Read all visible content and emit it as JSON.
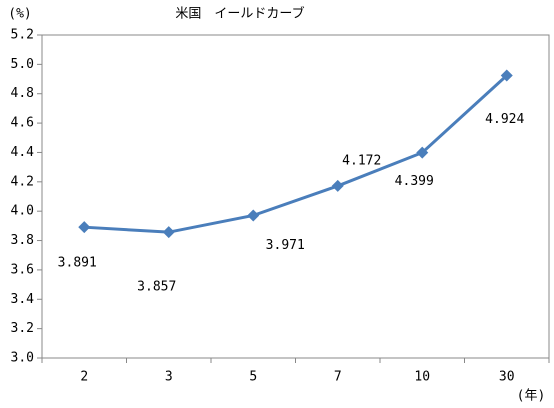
{
  "chart_data": {
    "type": "line",
    "title": "米国　イールドカーブ",
    "y_unit": "(%)",
    "x_unit": "(年)",
    "categories": [
      "2",
      "3",
      "5",
      "7",
      "10",
      "30"
    ],
    "series": [
      {
        "name": "米国",
        "color": "#4a7ebb",
        "values": [
          3.891,
          3.857,
          3.971,
          4.172,
          4.399,
          4.924
        ]
      }
    ],
    "ylim": [
      3.0,
      5.2
    ],
    "yticks": [
      {
        "value": 3.0,
        "label": "3.0"
      },
      3.2,
      3.4,
      3.6,
      3.8,
      {
        "value": 4.0,
        "label": "4.0"
      },
      4.2,
      4.4,
      4.6,
      4.8,
      {
        "value": 5.0,
        "label": "5.0"
      },
      5.2
    ]
  }
}
